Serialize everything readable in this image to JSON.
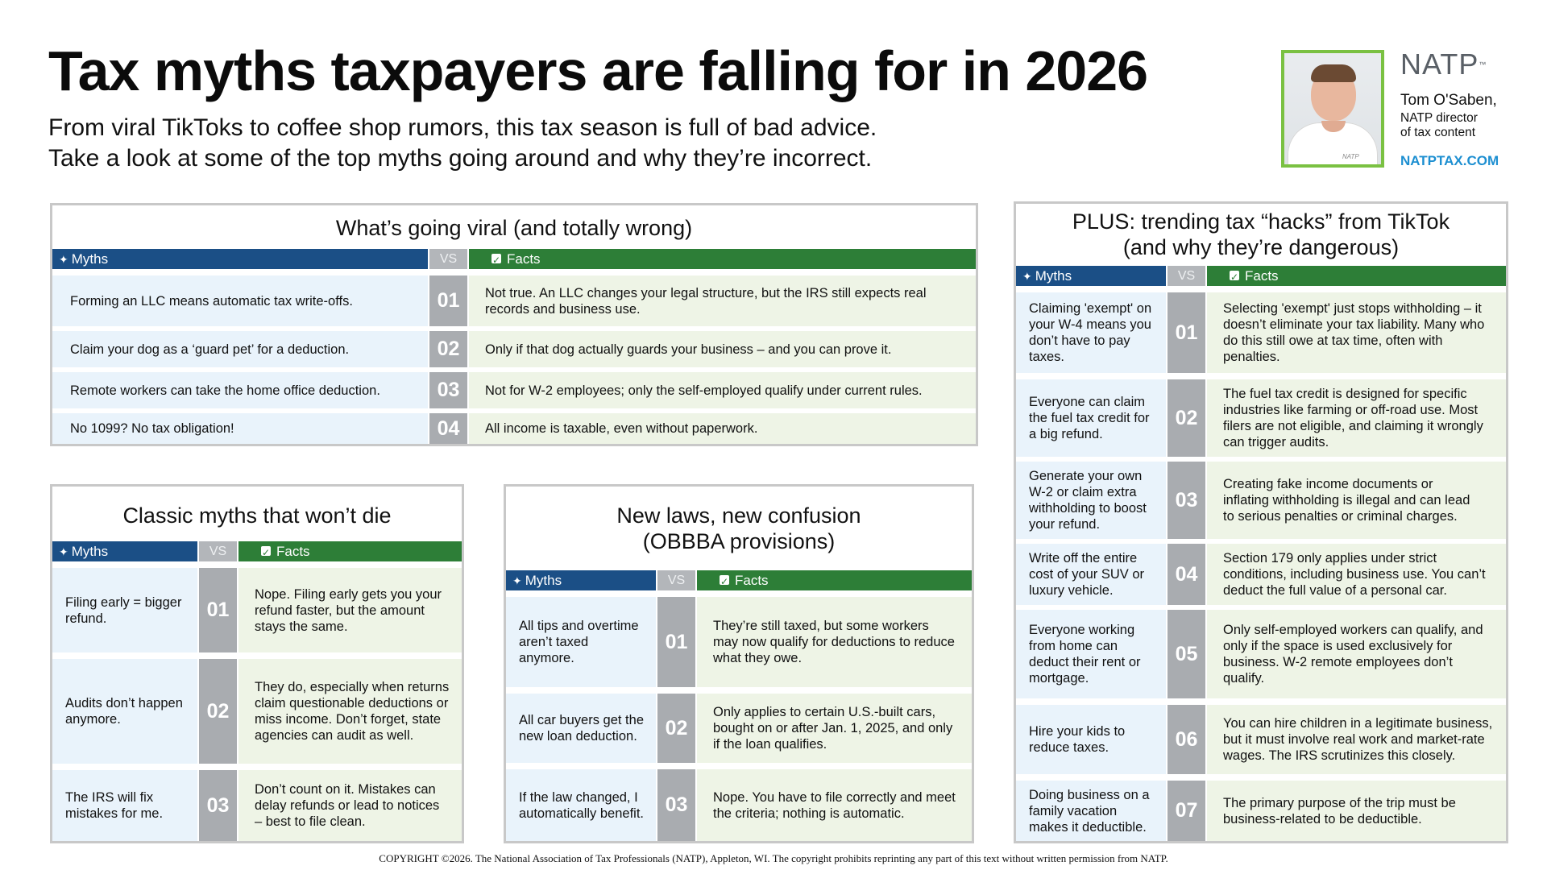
{
  "header": {
    "title": "Tax myths taxpayers are falling for in 2026",
    "subtitle_line1": "From viral TikToks to coffee shop rumors, this tax season is full of bad advice.",
    "subtitle_line2": "Take a look at some of the top myths going around and why they’re incorrect."
  },
  "author": {
    "logo": "NATP",
    "logo_mark": "™",
    "name": "Tom O'Saben,",
    "role_line1": "NATP director",
    "role_line2": "of tax content",
    "website": "NATPTAX.COM",
    "photo_watermark": "NATP"
  },
  "labels": {
    "myths": "Myths",
    "vs": "VS",
    "facts": "Facts"
  },
  "colors": {
    "myths_header": "#1b4f86",
    "facts_header": "#2d7e37",
    "number_bg": "#a9acb0",
    "myth_bg": "#e9f3fb",
    "fact_bg": "#eef4e6",
    "photo_border": "#7ac142",
    "link": "#1d8fd1"
  },
  "viral": {
    "title": "What’s going viral (and totally wrong)",
    "rows": [
      {
        "num": "01",
        "myth": "Forming an LLC means automatic tax write-offs.",
        "fact": "Not true. An LLC changes your legal structure, but the IRS still expects real records and business use."
      },
      {
        "num": "02",
        "myth": "Claim your dog as a ‘guard pet’ for a deduction.",
        "fact": "Only if that dog actually guards your business – and you can prove it."
      },
      {
        "num": "03",
        "myth": "Remote workers can take the home office deduction.",
        "fact": "Not for W-2 employees; only the self-employed qualify under current rules."
      },
      {
        "num": "04",
        "myth": "No 1099? No tax obligation!",
        "fact": "All income is taxable, even without paperwork."
      }
    ]
  },
  "classic": {
    "title": "Classic myths that won’t die",
    "rows": [
      {
        "num": "01",
        "myth": "Filing early = bigger refund.",
        "fact": "Nope. Filing early gets you your refund faster, but the amount stays the same."
      },
      {
        "num": "02",
        "myth": "Audits don’t happen anymore.",
        "fact": "They do, especially when returns claim questionable deductions or miss income. Don’t forget, state agencies can audit as well."
      },
      {
        "num": "03",
        "myth": "The IRS will fix mistakes for me.",
        "fact": "Don’t count on it. Mistakes can delay refunds or lead to notices – best to file clean."
      }
    ]
  },
  "newlaws": {
    "title_line1": "New laws, new confusion",
    "title_line2": "(OBBBA provisions)",
    "rows": [
      {
        "num": "01",
        "myth": "All tips and overtime aren’t taxed anymore.",
        "fact": "They’re still taxed, but some workers may now qualify for deductions to reduce what they owe."
      },
      {
        "num": "02",
        "myth": "All car buyers get the new loan deduction.",
        "fact": "Only applies to certain U.S.-built cars, bought on or after Jan. 1, 2025, and only if the loan qualifies."
      },
      {
        "num": "03",
        "myth": "If the law changed, I automatically benefit.",
        "fact": "Nope. You have to file correctly and meet the criteria; nothing is automatic."
      }
    ]
  },
  "tiktok": {
    "title_line1": "PLUS: trending tax “hacks” from TikTok",
    "title_line2": "(and why they’re dangerous)",
    "rows": [
      {
        "num": "01",
        "myth": "Claiming 'exempt' on your W-4 means you don’t have to pay taxes.",
        "fact": "Selecting 'exempt' just stops withholding – it doesn’t eliminate your tax liability. Many who do this still owe at tax time, often with penalties."
      },
      {
        "num": "02",
        "myth": "Everyone can claim the fuel tax credit for a big refund.",
        "fact": "The fuel tax credit is designed for specific industries like farming or off-road use. Most filers are not eligible, and claiming it wrongly can trigger audits."
      },
      {
        "num": "03",
        "myth": "Generate your own W-2 or claim extra withholding to boost your refund.",
        "fact": "Creating fake income documents or inflating withholding is illegal and can lead to serious penalties or criminal charges."
      },
      {
        "num": "04",
        "myth": "Write off the entire cost of your SUV or luxury vehicle.",
        "fact": "Section 179 only applies under strict conditions, including business use. You can’t deduct the full value of a personal car."
      },
      {
        "num": "05",
        "myth": "Everyone working from home can deduct their rent or mortgage.",
        "fact": "Only self-employed workers can qualify, and only if the space is used exclusively for business. W-2 remote employees don’t qualify."
      },
      {
        "num": "06",
        "myth": "Hire your kids to reduce taxes.",
        "fact": "You can hire children in a legitimate business, but it must involve real work and market-rate wages. The IRS scrutinizes this closely."
      },
      {
        "num": "07",
        "myth": "Doing business on a family vacation makes it deductible.",
        "fact": "The primary purpose of the trip must be business-related to be deductible."
      }
    ]
  },
  "footer": {
    "copyright": "COPYRIGHT ©2026. The National Association of Tax Professionals (NATP), Appleton, WI. The copyright prohibits reprinting any part of this text without written permission from NATP."
  }
}
